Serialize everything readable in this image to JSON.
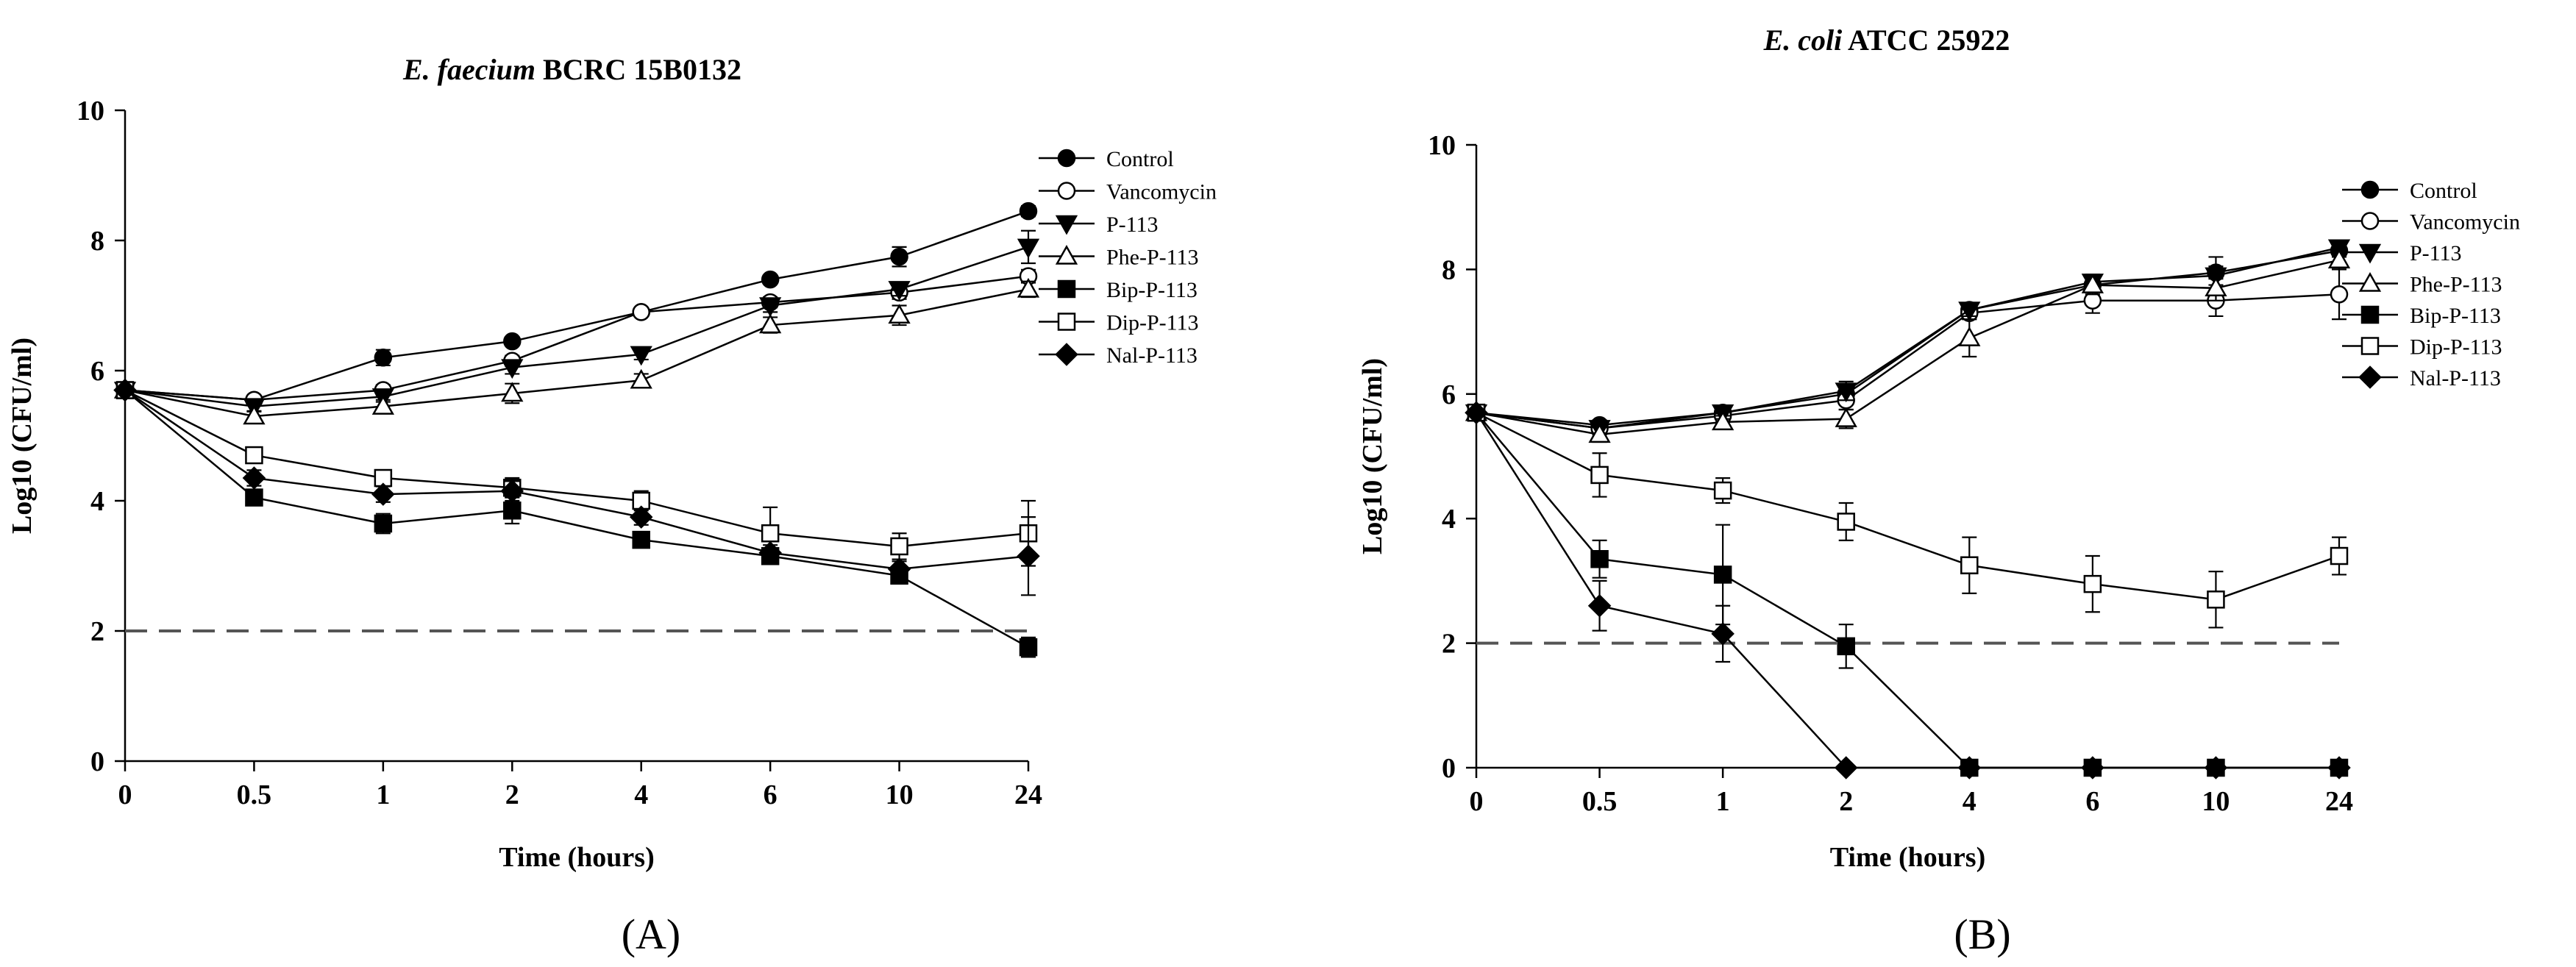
{
  "figure": {
    "panels": [
      "(A)",
      "(B)"
    ]
  },
  "chart_data": [
    {
      "type": "line",
      "title": "E. faecium BCRC 15B0132",
      "title_parts": [
        {
          "text": "E. faecium",
          "italic": true
        },
        {
          "text": " BCRC 15B0132",
          "italic": false
        }
      ],
      "xlabel": "Time (hours)",
      "ylabel": "Log10 (CFU/ml)",
      "categories": [
        "0",
        "0.5",
        "1",
        "2",
        "4",
        "6",
        "10",
        "24"
      ],
      "ylim": [
        0,
        10
      ],
      "yticks": [
        0,
        2,
        4,
        6,
        8,
        10
      ],
      "reference_line": {
        "y": 2,
        "style": "dashed"
      },
      "legend_position": "top-right",
      "series": [
        {
          "name": "Control",
          "marker": "circle",
          "filled": true,
          "values": [
            5.7,
            5.55,
            6.2,
            6.45,
            6.9,
            7.4,
            7.75,
            8.45
          ],
          "errors": [
            0.05,
            0.05,
            0.12,
            0.05,
            0.05,
            0.05,
            0.15,
            0.08
          ]
        },
        {
          "name": "Vancomycin",
          "marker": "circle",
          "filled": false,
          "values": [
            5.7,
            5.55,
            5.7,
            6.15,
            6.9,
            7.05,
            7.2,
            7.45
          ],
          "errors": [
            0.05,
            0.05,
            0.08,
            0.08,
            0.05,
            0.08,
            0.1,
            0.1
          ]
        },
        {
          "name": "P-113",
          "marker": "triangle-down",
          "filled": true,
          "values": [
            5.7,
            5.45,
            5.6,
            6.05,
            6.25,
            7.0,
            7.25,
            7.9
          ],
          "errors": [
            0.05,
            0.08,
            0.08,
            0.1,
            0.08,
            0.1,
            0.1,
            0.25
          ]
        },
        {
          "name": "Phe-P-113",
          "marker": "triangle-up",
          "filled": false,
          "values": [
            5.7,
            5.3,
            5.45,
            5.65,
            5.85,
            6.7,
            6.85,
            7.25
          ],
          "errors": [
            0.05,
            0.08,
            0.1,
            0.15,
            0.1,
            0.12,
            0.15,
            0.12
          ]
        },
        {
          "name": "Bip-P-113",
          "marker": "square",
          "filled": true,
          "values": [
            5.7,
            4.05,
            3.65,
            3.85,
            3.4,
            3.15,
            2.85,
            1.75
          ],
          "errors": [
            0.05,
            0.12,
            0.15,
            0.2,
            0.1,
            0.12,
            0.12,
            0.15
          ]
        },
        {
          "name": "Dip-P-113",
          "marker": "square",
          "filled": false,
          "values": [
            5.7,
            4.7,
            4.35,
            4.2,
            4.0,
            3.5,
            3.3,
            3.5
          ],
          "errors": [
            0.05,
            0.12,
            0.12,
            0.15,
            0.15,
            0.4,
            0.2,
            0.5
          ]
        },
        {
          "name": "Nal-P-113",
          "marker": "diamond",
          "filled": true,
          "values": [
            5.7,
            4.35,
            4.1,
            4.15,
            3.75,
            3.2,
            2.95,
            3.15
          ],
          "errors": [
            0.05,
            0.12,
            0.12,
            0.15,
            0.12,
            0.12,
            0.12,
            0.6
          ]
        }
      ]
    },
    {
      "type": "line",
      "title": "E. coli ATCC 25922",
      "title_parts": [
        {
          "text": "E. coli",
          "italic": true
        },
        {
          "text": " ATCC 25922",
          "italic": false
        }
      ],
      "xlabel": "Time (hours)",
      "ylabel": "Log10 (CFU/ml)",
      "categories": [
        "0",
        "0.5",
        "1",
        "2",
        "4",
        "6",
        "10",
        "24"
      ],
      "ylim": [
        0,
        10
      ],
      "yticks": [
        0,
        2,
        4,
        6,
        8,
        10
      ],
      "reference_line": {
        "y": 2,
        "style": "dashed"
      },
      "legend_position": "top-right",
      "series": [
        {
          "name": "Control",
          "marker": "circle",
          "filled": true,
          "values": [
            5.7,
            5.5,
            5.7,
            6.0,
            7.35,
            7.75,
            7.95,
            8.3
          ],
          "errors": [
            0.05,
            0.08,
            0.08,
            0.15,
            0.1,
            0.1,
            0.1,
            0.1
          ]
        },
        {
          "name": "Vancomycin",
          "marker": "circle",
          "filled": false,
          "values": [
            5.7,
            5.45,
            5.65,
            5.9,
            7.3,
            7.5,
            7.5,
            7.6
          ],
          "errors": [
            0.05,
            0.1,
            0.1,
            0.15,
            0.1,
            0.2,
            0.25,
            0.4
          ]
        },
        {
          "name": "P-113",
          "marker": "triangle-down",
          "filled": true,
          "values": [
            5.7,
            5.45,
            5.7,
            6.05,
            7.35,
            7.8,
            7.9,
            8.35
          ],
          "errors": [
            0.05,
            0.08,
            0.1,
            0.15,
            0.1,
            0.12,
            0.3,
            0.1
          ]
        },
        {
          "name": "Phe-P-113",
          "marker": "triangle-up",
          "filled": false,
          "values": [
            5.7,
            5.35,
            5.55,
            5.6,
            6.9,
            7.75,
            7.7,
            8.15
          ],
          "errors": [
            0.05,
            0.12,
            0.1,
            0.15,
            0.3,
            0.15,
            0.2,
            0.15
          ]
        },
        {
          "name": "Bip-P-113",
          "marker": "square",
          "filled": true,
          "values": [
            5.7,
            3.35,
            3.1,
            1.95,
            0,
            0,
            0,
            0
          ],
          "errors": [
            0.05,
            0.3,
            0.8,
            0.35,
            0,
            0,
            0,
            0
          ]
        },
        {
          "name": "Dip-P-113",
          "marker": "square",
          "filled": false,
          "values": [
            5.7,
            4.7,
            4.45,
            3.95,
            3.25,
            2.95,
            2.7,
            3.4
          ],
          "errors": [
            0.05,
            0.35,
            0.2,
            0.3,
            0.45,
            0.45,
            0.45,
            0.3
          ]
        },
        {
          "name": "Nal-P-113",
          "marker": "diamond",
          "filled": true,
          "values": [
            5.7,
            2.6,
            2.15,
            0,
            0,
            0,
            0,
            0
          ],
          "errors": [
            0.05,
            0.4,
            0.45,
            0,
            0,
            0,
            0,
            0
          ]
        }
      ]
    }
  ]
}
